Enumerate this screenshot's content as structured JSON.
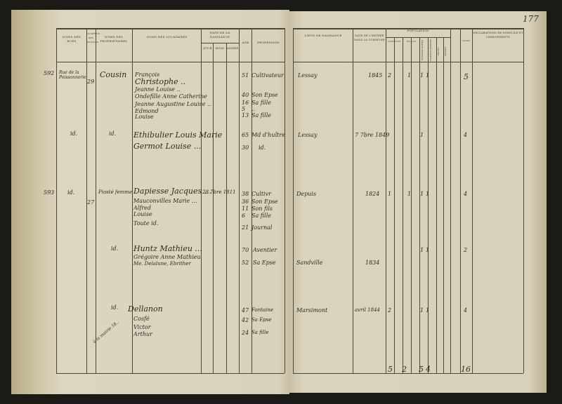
{
  "page_number": "177",
  "headers": {
    "rues": "Noms des rues",
    "numeros": "Numéros des maisons",
    "proprietaires": "Noms des propriétaires",
    "locataires": "Noms des locataires",
    "date_naissance": "Date de la naissance",
    "jour": "Jour",
    "mois": "Mois",
    "annee": "Année",
    "age": "Age",
    "profession": "Profession",
    "lieux": "Lieux de naissance",
    "date_entree": "Date de l'entrée dans la commune",
    "population": "Population",
    "garcons": "Garçons",
    "filles": "Filles",
    "hommes_maries": "Hommes mariés",
    "femmes_mariees": "Femmes mariées",
    "veufs": "Veufs",
    "veuves": "Veuves",
    "total": "Total",
    "declarations": "Déclarations de domicile et changements"
  },
  "entries": [
    {
      "no": "592",
      "rue": "Rue de la Poissonnerie",
      "num": "29",
      "prop": "Cousin",
      "names": [
        "François",
        "Christophe ..",
        "Jeanne Louise ..",
        "Ondefille Anne Catherine",
        "Jeanne Augustine Louise ..",
        "Edmond",
        "Louise"
      ],
      "ages": [
        "51",
        "40",
        "16",
        "5",
        "13"
      ],
      "prof": [
        "Cultivateur",
        "Son Epse",
        "Sa fille",
        "..",
        "Sa fille"
      ],
      "lieu": "Lessay",
      "date": "1845",
      "pop": [
        "2",
        "1",
        "1",
        "1"
      ],
      "total": "5"
    },
    {
      "rue": "id.",
      "prop": "id.",
      "names": [
        "Ethibulier Louis Marie",
        "Germot Louise ..."
      ],
      "ages": [
        "65",
        "30"
      ],
      "prof": [
        "Md d'huître",
        "id."
      ],
      "lieu": "Lessay",
      "date": "7 7bre 1849",
      "pop": [
        "1"
      ],
      "total": "4"
    },
    {
      "no": "593",
      "rue": "id.",
      "num": "27",
      "prop": "Piosté femme",
      "names": [
        "Dapiesse Jacques ...",
        "Mauconvilles Marie ...",
        "Alfred",
        "Louise",
        "Toute id."
      ],
      "date_naiss": "28 7bre 1811",
      "ages": [
        "38",
        "36",
        "11",
        "6",
        "21"
      ],
      "prof": [
        "Cultivr",
        "Son Epse",
        "Son fils",
        "Sa fille",
        "Journal"
      ],
      "lieu": "Depuis",
      "date": "1824",
      "pop": [
        "1",
        "1",
        "1",
        "1"
      ],
      "total": "4"
    },
    {
      "rue": "id.",
      "names": [
        "Huntz Mathieu ...",
        "Grégoire Anne Mathieu",
        "Me. Delalune, Ebrither"
      ],
      "ages": [
        "70",
        "52"
      ],
      "prof": [
        "Aventier",
        "Sa Epse"
      ],
      "lieu": "Sandville",
      "date": "1834",
      "pop": [
        "1",
        "1"
      ],
      "total": "2"
    },
    {
      "rue": "id.",
      "prop": "Dellanon",
      "names": [
        "Cosfé",
        "Victor",
        "Arthur"
      ],
      "note": "à la mairie 18..",
      "ages": [
        "47",
        "42",
        "24"
      ],
      "prof": [
        "Fontaine",
        "Sa Epse",
        "Sa fille"
      ],
      "lieu": "Marsimont",
      "date": "avril 1844",
      "pop": [
        "2",
        "1",
        "1"
      ],
      "total": "4"
    }
  ],
  "totals": [
    "5",
    "2",
    "5",
    "4",
    "16"
  ]
}
